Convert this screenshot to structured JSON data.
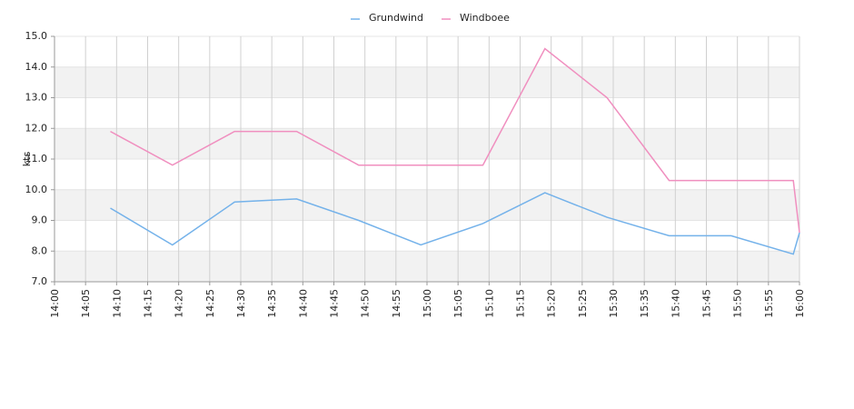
{
  "chart_data": {
    "type": "line",
    "ylabel": "kts",
    "x": [
      "14:09",
      "14:19",
      "14:29",
      "14:39",
      "14:49",
      "14:59",
      "15:09",
      "15:19",
      "15:29",
      "15:39",
      "15:49",
      "15:59",
      "16:00"
    ],
    "series": [
      {
        "name": "Grundwind",
        "color": "#74b2ea",
        "values": [
          9.4,
          8.2,
          9.6,
          9.7,
          9.0,
          8.2,
          8.9,
          9.9,
          9.1,
          8.5,
          8.5,
          7.9,
          8.6
        ]
      },
      {
        "name": "Windboee",
        "color": "#f08fbf",
        "values": [
          11.9,
          10.8,
          11.9,
          11.9,
          10.8,
          10.8,
          10.8,
          14.6,
          13.0,
          10.3,
          10.3,
          10.3,
          8.6
        ]
      }
    ],
    "xlim": [
      "14:00",
      "16:00"
    ],
    "xticks": [
      "14:00",
      "14:05",
      "14:10",
      "14:15",
      "14:20",
      "14:25",
      "14:30",
      "14:35",
      "14:40",
      "14:45",
      "14:50",
      "14:55",
      "15:00",
      "15:05",
      "15:10",
      "15:15",
      "15:20",
      "15:25",
      "15:30",
      "15:35",
      "15:40",
      "15:45",
      "15:50",
      "15:55",
      "16:00"
    ],
    "ylim": [
      7,
      15
    ],
    "yticks": [
      {
        "value": 7,
        "label": "7.0"
      },
      {
        "value": 8,
        "label": "8.0"
      },
      {
        "value": 9,
        "label": "9.0"
      },
      {
        "value": 10,
        "label": "10.0"
      },
      {
        "value": 11,
        "label": "11.0"
      },
      {
        "value": 12,
        "label": "12.0"
      },
      {
        "value": 13,
        "label": "13.0"
      },
      {
        "value": 14,
        "label": "14.0"
      },
      {
        "value": 15,
        "label": "15.0"
      }
    ],
    "grid": true,
    "legend": "top"
  }
}
